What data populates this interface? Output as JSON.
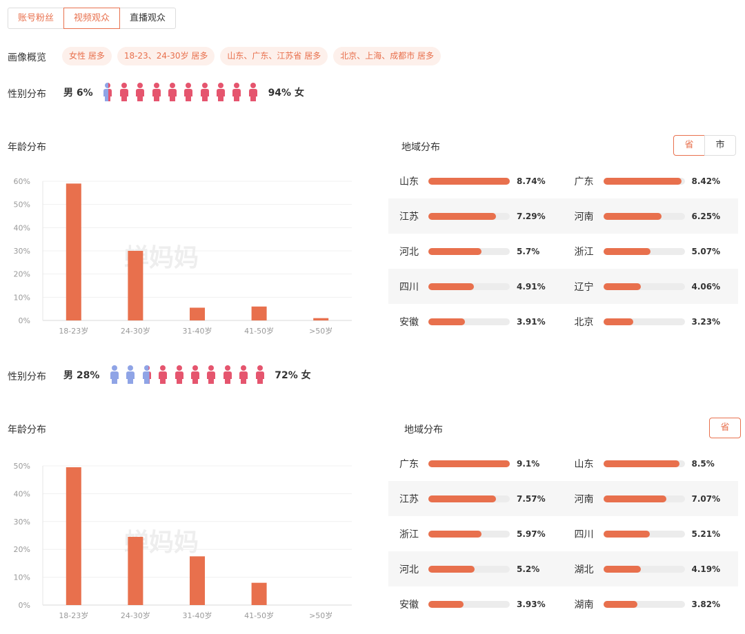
{
  "tabs": [
    {
      "label": "账号粉丝",
      "state": "normal"
    },
    {
      "label": "视频观众",
      "state": "active"
    },
    {
      "label": "直播观众",
      "state": "plain"
    }
  ],
  "portrait": {
    "label": "画像概览",
    "tags": [
      "女性 居多",
      "18-23、24-30岁 居多",
      "山东、广东、江苏省 居多",
      "北京、上海、成都市 居多"
    ]
  },
  "colors": {
    "accent": "#e8704d",
    "male": "#8fa4e6",
    "female": "#e5556e",
    "track": "#ececec"
  },
  "sections": [
    {
      "gender": {
        "label": "性别分布",
        "male_text": "男 6%",
        "female_text": "94% 女",
        "male_fraction": 0.06
      },
      "age": {
        "label": "年龄分布",
        "chart_data": {
          "type": "bar",
          "categories": [
            "18-23岁",
            "24-30岁",
            "31-40岁",
            "41-50岁",
            ">50岁"
          ],
          "values": [
            59,
            30,
            5.5,
            6,
            1
          ],
          "y_ticks": [
            "0%",
            "10%",
            "20%",
            "30%",
            "40%",
            "50%",
            "60%"
          ],
          "ylim": [
            0,
            60
          ],
          "watermark": "蝉妈妈"
        }
      },
      "region": {
        "title": "地域分布",
        "toggle": [
          {
            "label": "省",
            "active": true
          },
          {
            "label": "市",
            "active": false
          }
        ],
        "rows": [
          [
            {
              "name": "山东",
              "value": "8.74%",
              "fill": 1.0
            },
            {
              "name": "广东",
              "value": "8.42%",
              "fill": 0.963
            }
          ],
          [
            {
              "name": "江苏",
              "value": "7.29%",
              "fill": 0.834
            },
            {
              "name": "河南",
              "value": "6.25%",
              "fill": 0.715
            }
          ],
          [
            {
              "name": "河北",
              "value": "5.7%",
              "fill": 0.652
            },
            {
              "name": "浙江",
              "value": "5.07%",
              "fill": 0.58
            }
          ],
          [
            {
              "name": "四川",
              "value": "4.91%",
              "fill": 0.562
            },
            {
              "name": "辽宁",
              "value": "4.06%",
              "fill": 0.465
            }
          ],
          [
            {
              "name": "安徽",
              "value": "3.91%",
              "fill": 0.447
            },
            {
              "name": "北京",
              "value": "3.23%",
              "fill": 0.37
            }
          ]
        ]
      }
    },
    {
      "gender": {
        "label": "性别分布",
        "male_text": "男 28%",
        "female_text": "72% 女",
        "male_fraction": 0.28
      },
      "age": {
        "label": "年龄分布",
        "chart_data": {
          "type": "bar",
          "categories": [
            "18-23岁",
            "24-30岁",
            "31-40岁",
            "41-50岁",
            ">50岁"
          ],
          "values": [
            49.5,
            24.5,
            17.5,
            8,
            0
          ],
          "y_ticks": [
            "0%",
            "10%",
            "20%",
            "30%",
            "40%",
            "50%"
          ],
          "ylim": [
            0,
            50
          ],
          "watermark": "蝉妈妈"
        }
      },
      "region": {
        "title": "地域分布",
        "toggle": [
          {
            "label": "省",
            "active": true
          }
        ],
        "rows": [
          [
            {
              "name": "广东",
              "value": "9.1%",
              "fill": 1.0
            },
            {
              "name": "山东",
              "value": "8.5%",
              "fill": 0.934
            }
          ],
          [
            {
              "name": "江苏",
              "value": "7.57%",
              "fill": 0.832
            },
            {
              "name": "河南",
              "value": "7.07%",
              "fill": 0.777
            }
          ],
          [
            {
              "name": "浙江",
              "value": "5.97%",
              "fill": 0.656
            },
            {
              "name": "四川",
              "value": "5.21%",
              "fill": 0.573
            }
          ],
          [
            {
              "name": "河北",
              "value": "5.2%",
              "fill": 0.571
            },
            {
              "name": "湖北",
              "value": "4.19%",
              "fill": 0.46
            }
          ],
          [
            {
              "name": "安徽",
              "value": "3.93%",
              "fill": 0.432
            },
            {
              "name": "湖南",
              "value": "3.82%",
              "fill": 0.42
            }
          ]
        ]
      }
    }
  ]
}
